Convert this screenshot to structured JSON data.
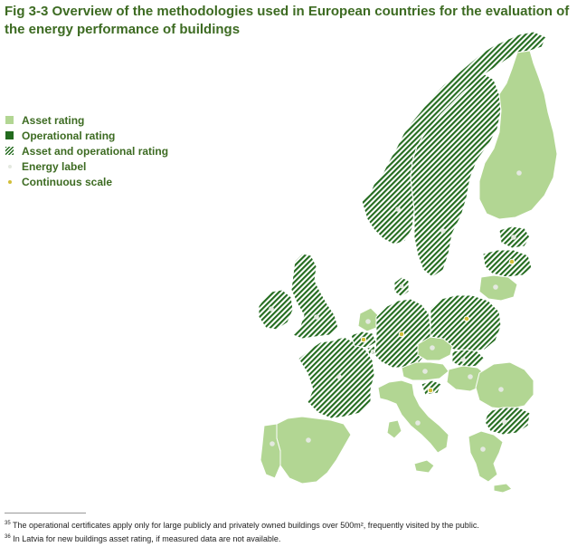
{
  "title": "Fig 3-3 Overview of the methodologies used in European countries for the evaluation of the energy performance of buildings",
  "legend": [
    {
      "key": "asset",
      "label": "Asset rating"
    },
    {
      "key": "operational",
      "label": "Operational rating"
    },
    {
      "key": "both",
      "label": "Asset and operational rating"
    },
    {
      "key": "energy_label",
      "label": "Energy label"
    },
    {
      "key": "continuous",
      "label": "Continuous scale"
    }
  ],
  "colors": {
    "asset": "#b2d693",
    "operational": "#236b1e",
    "energy_label": "#e4e9e0",
    "continuous": "#d2bf3a",
    "title": "#3d6b22"
  },
  "regions": [
    {
      "id": "norway",
      "rating": "both",
      "marker": "energy_label"
    },
    {
      "id": "sweden",
      "rating": "both",
      "marker": "energy_label"
    },
    {
      "id": "finland",
      "rating": "asset",
      "marker": "energy_label"
    },
    {
      "id": "ireland",
      "rating": "both",
      "marker": "energy_label"
    },
    {
      "id": "united-kingdom",
      "rating": "both",
      "marker": "energy_label"
    },
    {
      "id": "france",
      "rating": "both",
      "marker": "energy_label"
    },
    {
      "id": "spain",
      "rating": "asset",
      "marker": "energy_label"
    },
    {
      "id": "portugal",
      "rating": "asset",
      "marker": "energy_label"
    },
    {
      "id": "italy",
      "rating": "asset",
      "marker": "energy_label"
    },
    {
      "id": "netherlands",
      "rating": "asset",
      "marker": "energy_label"
    },
    {
      "id": "belgium",
      "rating": "both",
      "marker": "continuous"
    },
    {
      "id": "luxembourg",
      "rating": "both",
      "marker": "energy_label"
    },
    {
      "id": "germany",
      "rating": "both",
      "marker": "continuous"
    },
    {
      "id": "denmark",
      "rating": "both",
      "marker": "energy_label"
    },
    {
      "id": "poland",
      "rating": "both",
      "marker": "continuous"
    },
    {
      "id": "czech-republic",
      "rating": "asset",
      "marker": "energy_label"
    },
    {
      "id": "slovakia",
      "rating": "both",
      "marker": "energy_label"
    },
    {
      "id": "austria",
      "rating": "asset",
      "marker": "energy_label"
    },
    {
      "id": "hungary",
      "rating": "asset",
      "marker": "energy_label"
    },
    {
      "id": "slovenia",
      "rating": "both",
      "marker": "continuous"
    },
    {
      "id": "romania",
      "rating": "asset",
      "marker": "energy_label"
    },
    {
      "id": "bulgaria",
      "rating": "both",
      "marker": "energy_label"
    },
    {
      "id": "greece",
      "rating": "asset",
      "marker": "energy_label"
    },
    {
      "id": "estonia",
      "rating": "both",
      "marker": "energy_label"
    },
    {
      "id": "latvia",
      "rating": "both",
      "marker": "continuous"
    },
    {
      "id": "lithuania",
      "rating": "asset",
      "marker": "energy_label"
    }
  ],
  "footnotes": [
    {
      "num": "35",
      "text": "The operational certificates apply only for large publicly and privately owned buildings over 500m², frequently visited by the public."
    },
    {
      "num": "36",
      "text": "In Latvia for new buildings asset rating, if measured data are not available."
    }
  ]
}
